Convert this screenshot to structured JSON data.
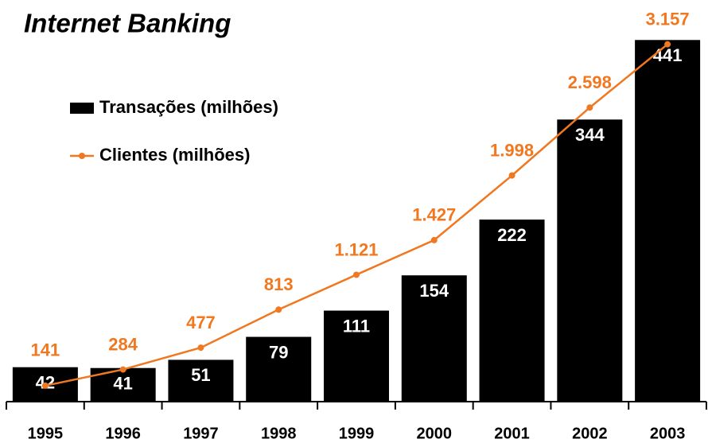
{
  "chart_data": {
    "type": "bar",
    "title": "Internet Banking",
    "categories": [
      "1995",
      "1996",
      "1997",
      "1998",
      "1999",
      "2000",
      "2001",
      "2002",
      "2003"
    ],
    "series": [
      {
        "name": "Transações (milhões)",
        "color": "#000000",
        "type": "bar",
        "values": [
          42,
          41,
          51,
          79,
          111,
          154,
          222,
          344,
          441
        ]
      },
      {
        "name": "Clientes (milhões)",
        "color": "#f07820",
        "type": "line",
        "axis": "y2",
        "values": [
          141,
          284,
          477,
          813,
          1121,
          1427,
          1998,
          2598,
          3157
        ],
        "value_labels": [
          "141",
          "284",
          "477",
          "813",
          "1.121",
          "1.427",
          "1.998",
          "2.598",
          "3.157"
        ]
      }
    ],
    "ylim": [
      0,
      450
    ],
    "y2lim": [
      0,
      3260
    ],
    "legend": "top-left"
  }
}
